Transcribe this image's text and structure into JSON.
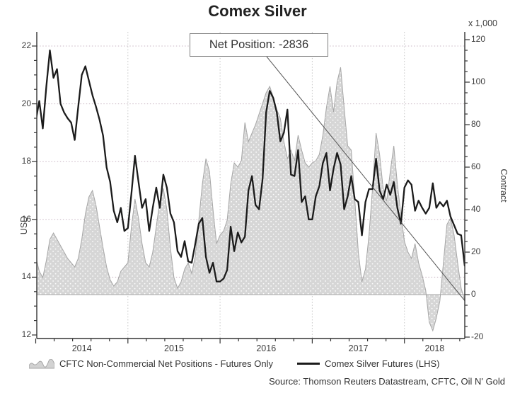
{
  "title": "Comex Silver",
  "annotation": {
    "label": "Net Position: -2836"
  },
  "legend": {
    "area_label": "CFTC Non-Commercial Net Positions - Futures Only",
    "line_label": "Comex Silver Futures (LHS)"
  },
  "source": "Source: Thomson Reuters Datastream, CFTC, Oil N' Gold",
  "chart_data": {
    "type": "area",
    "subtype": "combo area(right axis) + line(left axis), weekly time series",
    "title": "Comex Silver",
    "xlabel": "",
    "x_axis": {
      "tick_years": [
        2014,
        2015,
        2016,
        2017,
        2018
      ],
      "minor_step_years": 0.2,
      "xlim": [
        2014.0,
        2018.66
      ],
      "grid": true
    },
    "left_axis": {
      "label": "USD",
      "ticks": [
        12,
        14,
        16,
        18,
        20,
        22
      ],
      "minor_step": 0.5,
      "ylim": [
        12,
        22
      ],
      "grid": true
    },
    "right_axis": {
      "label": "Contract",
      "multiplier": "x 1,000",
      "ticks": [
        -20,
        0,
        20,
        40,
        60,
        80,
        100,
        120
      ],
      "minor_step": 5,
      "ylim": [
        -20,
        120
      ]
    },
    "x_start": 2014.0,
    "x_step_years": 0.0384615,
    "series": [
      {
        "name": "CFTC Non-Commercial Net Positions - Futures Only",
        "type": "area",
        "axis": "right",
        "unit": "thousand contracts",
        "fill_color": "#d6d6d6",
        "edge_color": "#a6a6a6",
        "values": [
          18,
          11,
          8,
          16,
          26,
          29,
          26,
          23,
          20,
          17,
          15,
          13,
          17,
          26,
          38,
          46,
          49,
          42,
          32,
          22,
          13,
          7,
          4,
          6,
          11,
          13,
          15,
          32,
          45,
          36,
          24,
          15,
          13,
          20,
          32,
          44,
          50,
          40,
          22,
          8,
          3,
          6,
          12,
          15,
          10,
          18,
          35,
          52,
          64,
          58,
          40,
          24,
          28,
          30,
          35,
          52,
          62,
          60,
          63,
          81,
          72,
          76,
          80,
          85,
          90,
          95,
          98,
          93,
          87,
          83,
          72,
          64,
          68,
          63,
          75,
          68,
          62,
          60,
          62,
          63,
          66,
          75,
          88,
          98,
          86,
          100,
          107,
          88,
          70,
          68,
          45,
          20,
          6,
          12,
          28,
          50,
          76,
          66,
          50,
          44,
          58,
          70,
          52,
          38,
          25,
          20,
          17,
          24,
          15,
          9,
          2,
          -13,
          -17,
          -11,
          -3,
          15,
          33,
          36,
          28,
          15,
          3,
          -2.836
        ]
      },
      {
        "name": "Comex Silver Futures (LHS)",
        "type": "line",
        "axis": "left",
        "unit": "USD",
        "color": "#1b1b1b",
        "values": [
          19.4,
          20.1,
          19.15,
          20.6,
          21.85,
          20.9,
          21.2,
          20.0,
          19.7,
          19.5,
          19.35,
          18.75,
          19.9,
          21.0,
          21.3,
          20.8,
          20.3,
          19.9,
          19.45,
          18.9,
          17.8,
          17.3,
          16.3,
          15.9,
          16.4,
          15.6,
          15.7,
          16.9,
          18.2,
          17.3,
          16.4,
          16.7,
          15.6,
          16.4,
          17.1,
          16.4,
          17.55,
          17.1,
          16.2,
          15.9,
          14.9,
          14.7,
          15.25,
          14.55,
          14.5,
          15.15,
          15.85,
          16.05,
          14.7,
          14.15,
          14.5,
          13.85,
          13.85,
          13.95,
          14.25,
          15.75,
          14.9,
          15.55,
          15.2,
          15.4,
          17.0,
          17.5,
          16.5,
          16.35,
          17.4,
          19.7,
          20.45,
          20.2,
          19.7,
          18.7,
          19.0,
          19.8,
          17.55,
          17.5,
          18.4,
          16.6,
          16.8,
          16.0,
          16.0,
          16.8,
          17.15,
          17.95,
          18.3,
          17.0,
          17.75,
          18.3,
          17.9,
          16.35,
          16.8,
          17.5,
          16.7,
          16.6,
          15.45,
          16.6,
          17.05,
          17.05,
          18.1,
          17.0,
          16.7,
          17.2,
          16.85,
          17.3,
          16.4,
          15.85,
          17.1,
          17.35,
          17.2,
          16.3,
          16.65,
          16.4,
          16.2,
          16.4,
          17.25,
          16.4,
          16.6,
          16.45,
          16.65,
          16.1,
          15.8,
          15.5,
          15.45,
          14.4
        ]
      }
    ],
    "annotation": {
      "text": "Net Position: -2836",
      "target_value_contracts": -2836
    },
    "legend_position": "bottom",
    "colors": {
      "grid_horizontal": "#c9b6c4",
      "grid_vertical": "#c6c6c6",
      "axis": "#333333",
      "leader_line": "#555555"
    }
  }
}
